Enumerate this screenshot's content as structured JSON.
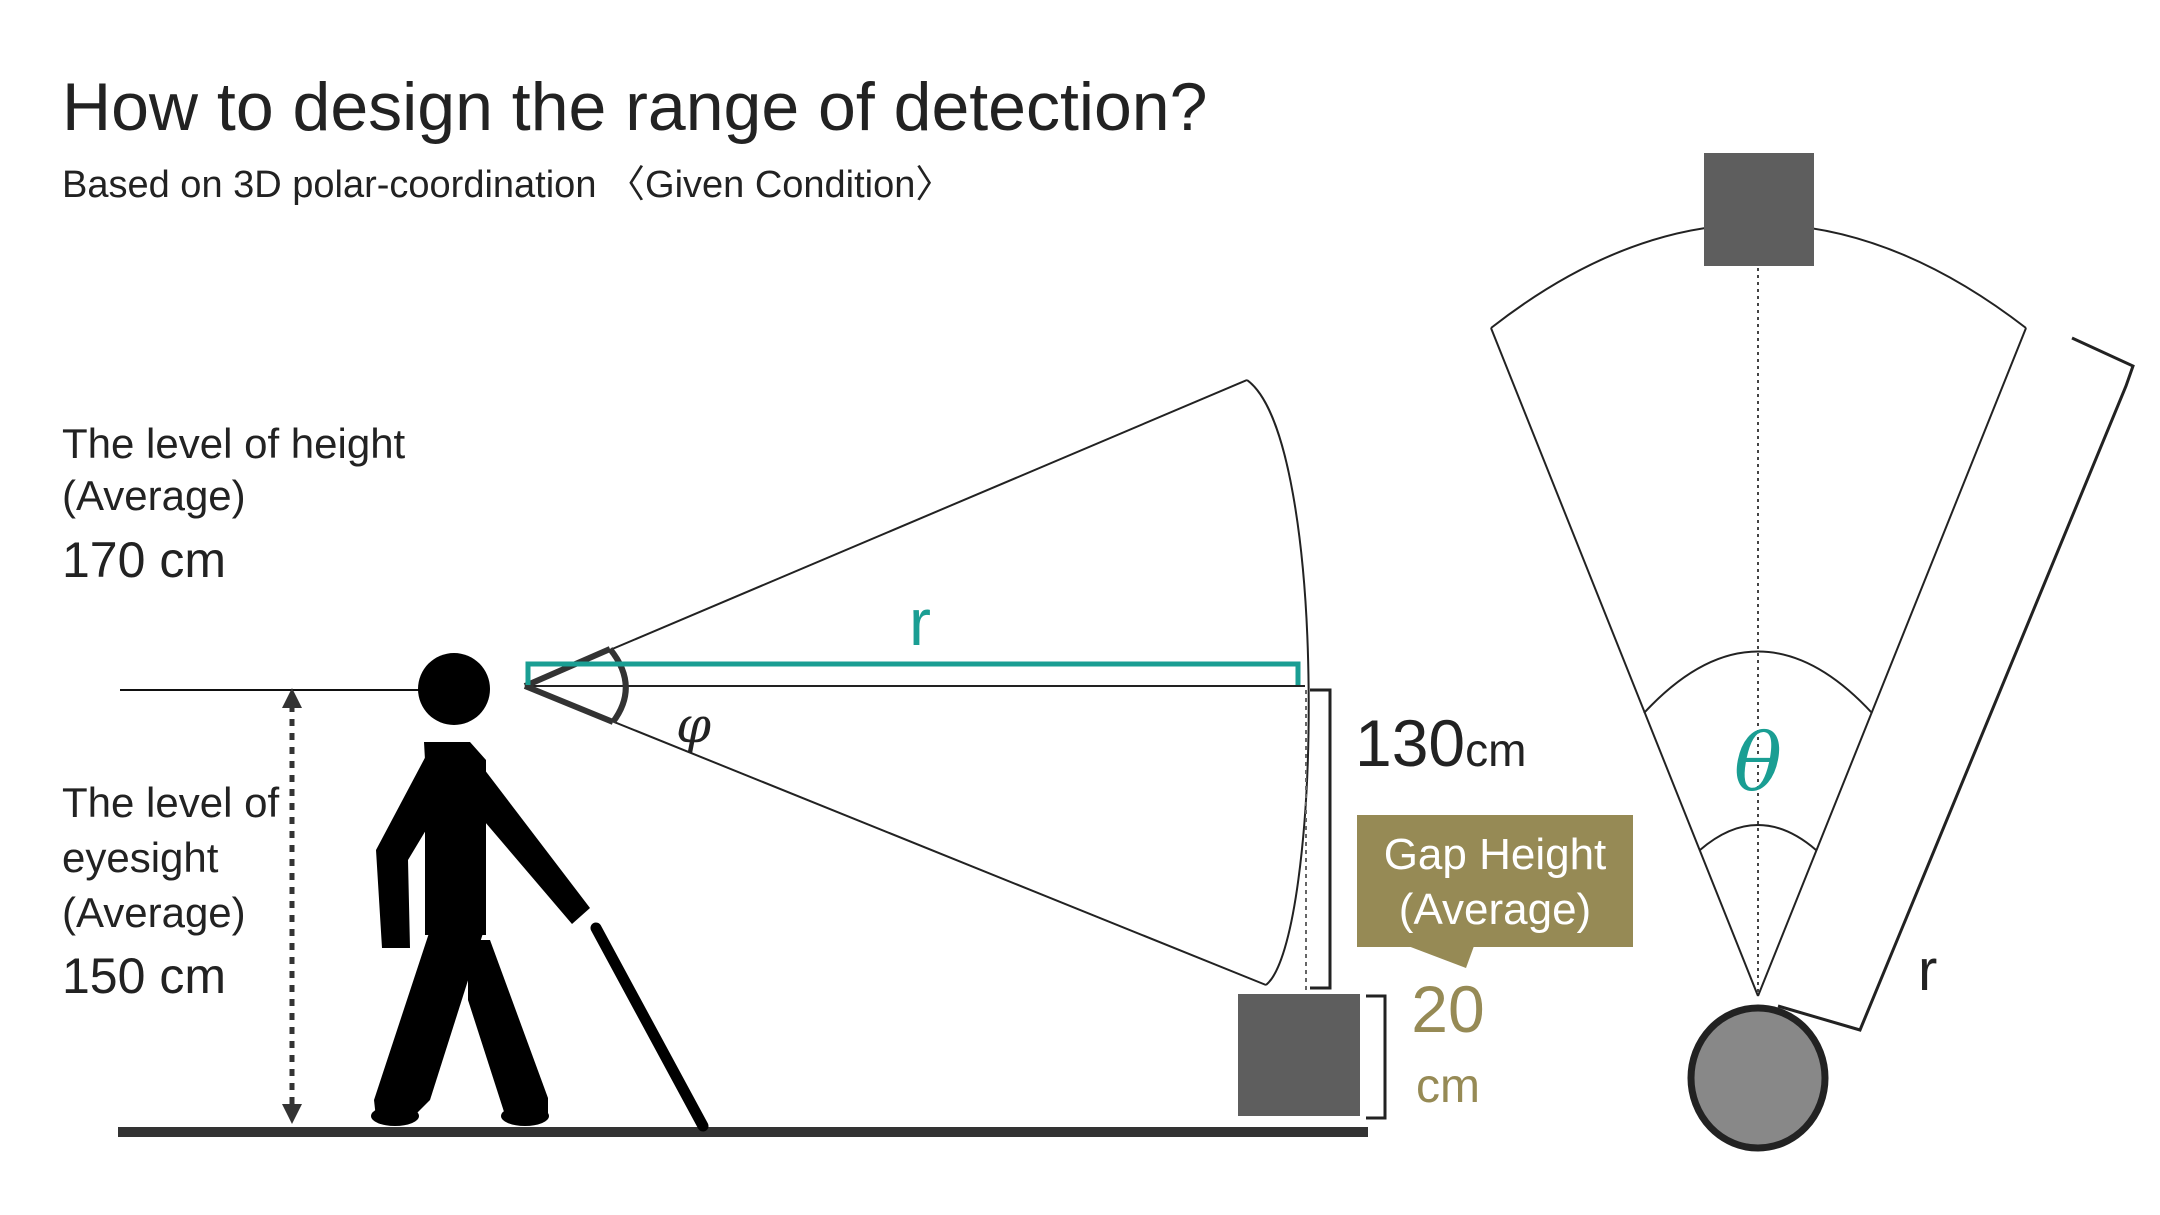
{
  "title": "How to design the range of detection?",
  "subtitle": "Based on 3D polar-coordination 〈Given Condition〉",
  "height_label": {
    "line1": "The level of height",
    "line2": "(Average)",
    "value": "170 cm"
  },
  "eyesight_label": {
    "line1": "The level of",
    "line2": "eyesight",
    "line3": "(Average)",
    "value": "150 cm"
  },
  "side_view": {
    "radius_symbol": "r",
    "angle_symbol": "φ",
    "span_value": "130",
    "span_unit": "cm"
  },
  "gap": {
    "callout_line1": "Gap Height",
    "callout_line2": "(Average)",
    "value": "20",
    "unit": "cm"
  },
  "top_view": {
    "angle_symbol": "θ",
    "radius_symbol": "r"
  },
  "colors": {
    "teal": "#1a9e93",
    "olive": "#968a55",
    "box": "#5e5e5e",
    "ink": "#111111",
    "head_circle": "#888888"
  }
}
